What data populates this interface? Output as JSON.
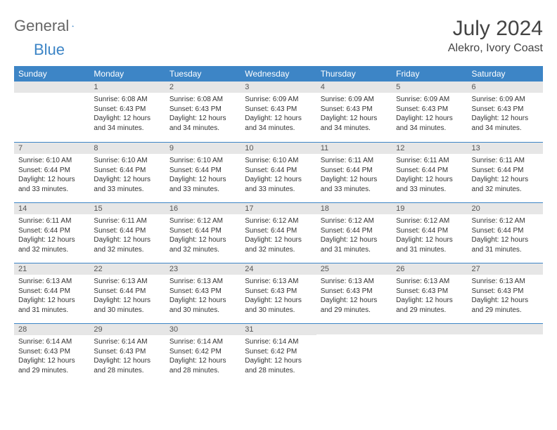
{
  "logo": {
    "part1": "General",
    "part2": "Blue"
  },
  "title": "July 2024",
  "location": "Alekro, Ivory Coast",
  "colors": {
    "header_bg": "#3d85c6",
    "header_text": "#ffffff",
    "daynum_bg": "#e6e6e6",
    "row_divider": "#3d85c6",
    "body_bg": "#ffffff",
    "text": "#333333"
  },
  "weekdays": [
    "Sunday",
    "Monday",
    "Tuesday",
    "Wednesday",
    "Thursday",
    "Friday",
    "Saturday"
  ],
  "weeks": [
    [
      {
        "num": "",
        "lines": [
          "",
          "",
          "",
          ""
        ]
      },
      {
        "num": "1",
        "lines": [
          "Sunrise: 6:08 AM",
          "Sunset: 6:43 PM",
          "Daylight: 12 hours",
          "and 34 minutes."
        ]
      },
      {
        "num": "2",
        "lines": [
          "Sunrise: 6:08 AM",
          "Sunset: 6:43 PM",
          "Daylight: 12 hours",
          "and 34 minutes."
        ]
      },
      {
        "num": "3",
        "lines": [
          "Sunrise: 6:09 AM",
          "Sunset: 6:43 PM",
          "Daylight: 12 hours",
          "and 34 minutes."
        ]
      },
      {
        "num": "4",
        "lines": [
          "Sunrise: 6:09 AM",
          "Sunset: 6:43 PM",
          "Daylight: 12 hours",
          "and 34 minutes."
        ]
      },
      {
        "num": "5",
        "lines": [
          "Sunrise: 6:09 AM",
          "Sunset: 6:43 PM",
          "Daylight: 12 hours",
          "and 34 minutes."
        ]
      },
      {
        "num": "6",
        "lines": [
          "Sunrise: 6:09 AM",
          "Sunset: 6:43 PM",
          "Daylight: 12 hours",
          "and 34 minutes."
        ]
      }
    ],
    [
      {
        "num": "7",
        "lines": [
          "Sunrise: 6:10 AM",
          "Sunset: 6:44 PM",
          "Daylight: 12 hours",
          "and 33 minutes."
        ]
      },
      {
        "num": "8",
        "lines": [
          "Sunrise: 6:10 AM",
          "Sunset: 6:44 PM",
          "Daylight: 12 hours",
          "and 33 minutes."
        ]
      },
      {
        "num": "9",
        "lines": [
          "Sunrise: 6:10 AM",
          "Sunset: 6:44 PM",
          "Daylight: 12 hours",
          "and 33 minutes."
        ]
      },
      {
        "num": "10",
        "lines": [
          "Sunrise: 6:10 AM",
          "Sunset: 6:44 PM",
          "Daylight: 12 hours",
          "and 33 minutes."
        ]
      },
      {
        "num": "11",
        "lines": [
          "Sunrise: 6:11 AM",
          "Sunset: 6:44 PM",
          "Daylight: 12 hours",
          "and 33 minutes."
        ]
      },
      {
        "num": "12",
        "lines": [
          "Sunrise: 6:11 AM",
          "Sunset: 6:44 PM",
          "Daylight: 12 hours",
          "and 33 minutes."
        ]
      },
      {
        "num": "13",
        "lines": [
          "Sunrise: 6:11 AM",
          "Sunset: 6:44 PM",
          "Daylight: 12 hours",
          "and 32 minutes."
        ]
      }
    ],
    [
      {
        "num": "14",
        "lines": [
          "Sunrise: 6:11 AM",
          "Sunset: 6:44 PM",
          "Daylight: 12 hours",
          "and 32 minutes."
        ]
      },
      {
        "num": "15",
        "lines": [
          "Sunrise: 6:11 AM",
          "Sunset: 6:44 PM",
          "Daylight: 12 hours",
          "and 32 minutes."
        ]
      },
      {
        "num": "16",
        "lines": [
          "Sunrise: 6:12 AM",
          "Sunset: 6:44 PM",
          "Daylight: 12 hours",
          "and 32 minutes."
        ]
      },
      {
        "num": "17",
        "lines": [
          "Sunrise: 6:12 AM",
          "Sunset: 6:44 PM",
          "Daylight: 12 hours",
          "and 32 minutes."
        ]
      },
      {
        "num": "18",
        "lines": [
          "Sunrise: 6:12 AM",
          "Sunset: 6:44 PM",
          "Daylight: 12 hours",
          "and 31 minutes."
        ]
      },
      {
        "num": "19",
        "lines": [
          "Sunrise: 6:12 AM",
          "Sunset: 6:44 PM",
          "Daylight: 12 hours",
          "and 31 minutes."
        ]
      },
      {
        "num": "20",
        "lines": [
          "Sunrise: 6:12 AM",
          "Sunset: 6:44 PM",
          "Daylight: 12 hours",
          "and 31 minutes."
        ]
      }
    ],
    [
      {
        "num": "21",
        "lines": [
          "Sunrise: 6:13 AM",
          "Sunset: 6:44 PM",
          "Daylight: 12 hours",
          "and 31 minutes."
        ]
      },
      {
        "num": "22",
        "lines": [
          "Sunrise: 6:13 AM",
          "Sunset: 6:44 PM",
          "Daylight: 12 hours",
          "and 30 minutes."
        ]
      },
      {
        "num": "23",
        "lines": [
          "Sunrise: 6:13 AM",
          "Sunset: 6:43 PM",
          "Daylight: 12 hours",
          "and 30 minutes."
        ]
      },
      {
        "num": "24",
        "lines": [
          "Sunrise: 6:13 AM",
          "Sunset: 6:43 PM",
          "Daylight: 12 hours",
          "and 30 minutes."
        ]
      },
      {
        "num": "25",
        "lines": [
          "Sunrise: 6:13 AM",
          "Sunset: 6:43 PM",
          "Daylight: 12 hours",
          "and 29 minutes."
        ]
      },
      {
        "num": "26",
        "lines": [
          "Sunrise: 6:13 AM",
          "Sunset: 6:43 PM",
          "Daylight: 12 hours",
          "and 29 minutes."
        ]
      },
      {
        "num": "27",
        "lines": [
          "Sunrise: 6:13 AM",
          "Sunset: 6:43 PM",
          "Daylight: 12 hours",
          "and 29 minutes."
        ]
      }
    ],
    [
      {
        "num": "28",
        "lines": [
          "Sunrise: 6:14 AM",
          "Sunset: 6:43 PM",
          "Daylight: 12 hours",
          "and 29 minutes."
        ]
      },
      {
        "num": "29",
        "lines": [
          "Sunrise: 6:14 AM",
          "Sunset: 6:43 PM",
          "Daylight: 12 hours",
          "and 28 minutes."
        ]
      },
      {
        "num": "30",
        "lines": [
          "Sunrise: 6:14 AM",
          "Sunset: 6:42 PM",
          "Daylight: 12 hours",
          "and 28 minutes."
        ]
      },
      {
        "num": "31",
        "lines": [
          "Sunrise: 6:14 AM",
          "Sunset: 6:42 PM",
          "Daylight: 12 hours",
          "and 28 minutes."
        ]
      },
      {
        "num": "",
        "lines": [
          "",
          "",
          "",
          ""
        ]
      },
      {
        "num": "",
        "lines": [
          "",
          "",
          "",
          ""
        ]
      },
      {
        "num": "",
        "lines": [
          "",
          "",
          "",
          ""
        ]
      }
    ]
  ]
}
